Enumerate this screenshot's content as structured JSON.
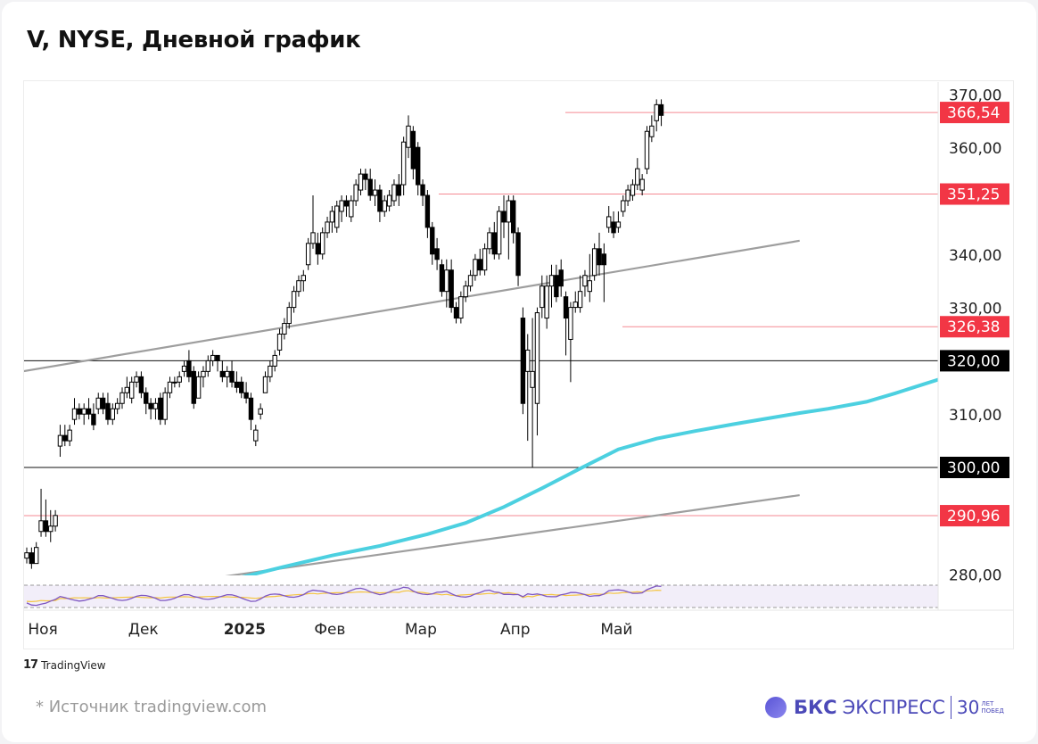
{
  "title": "V, NYSE, Дневной график",
  "source": "*  Источник tradingview.com",
  "tv_logo": "TradingView",
  "brand": {
    "name": "БКС",
    "name2": "ЭКСПРЕСС",
    "years": "30",
    "sub1": "ЛЕТ",
    "sub2": "ПОБЕД"
  },
  "chart_data": {
    "type": "candlestick",
    "title": "V, NYSE, Дневной график",
    "y_ticks": [
      "370,00",
      "360,00",
      "340,00",
      "330,00",
      "310,00",
      "280,00"
    ],
    "ylim": [
      278,
      372
    ],
    "x_ticks": [
      {
        "label": "Ноя",
        "index": 1
      },
      {
        "label": "Дек",
        "index": 22
      },
      {
        "label": "2025",
        "index": 42
      },
      {
        "label": "Фев",
        "index": 61
      },
      {
        "label": "Мар",
        "index": 80
      },
      {
        "label": "Апр",
        "index": 100
      },
      {
        "label": "Май",
        "index": 121
      }
    ],
    "price_levels": [
      {
        "value": 366.54,
        "label": "366,54",
        "color": "#f23645",
        "style": "red"
      },
      {
        "value": 351.25,
        "label": "351,25",
        "color": "#f23645",
        "style": "red"
      },
      {
        "value": 326.38,
        "label": "326,38",
        "color": "#f23645",
        "style": "red"
      },
      {
        "value": 320.0,
        "label": "320,00",
        "color": "#000000",
        "style": "black"
      },
      {
        "value": 300.0,
        "label": "300,00",
        "color": "#000000",
        "style": "black"
      },
      {
        "value": 290.96,
        "label": "290,96",
        "color": "#f23645",
        "style": "red"
      }
    ],
    "candles_ohlc": [
      [
        283,
        285,
        282,
        284
      ],
      [
        284,
        285,
        281,
        282
      ],
      [
        282,
        286,
        282,
        285
      ],
      [
        288,
        296,
        287,
        290
      ],
      [
        290,
        294,
        287,
        288
      ],
      [
        288,
        292,
        286,
        289
      ],
      [
        289,
        292,
        288,
        291
      ],
      [
        304,
        308,
        302,
        306
      ],
      [
        306,
        308,
        304,
        305
      ],
      [
        305,
        308,
        304,
        307
      ],
      [
        309,
        313,
        308,
        311
      ],
      [
        311,
        312,
        309,
        310
      ],
      [
        310,
        312,
        308,
        311
      ],
      [
        311,
        313,
        309,
        310
      ],
      [
        310,
        312,
        307,
        308
      ],
      [
        311,
        314,
        310,
        313
      ],
      [
        313,
        314,
        310,
        311
      ],
      [
        312,
        314,
        308,
        309
      ],
      [
        309,
        312,
        308,
        311
      ],
      [
        311,
        313,
        310,
        312
      ],
      [
        312,
        315,
        311,
        314
      ],
      [
        314,
        317,
        313,
        315
      ],
      [
        313,
        317,
        312,
        316
      ],
      [
        316,
        318,
        315,
        317
      ],
      [
        317,
        318,
        313,
        314
      ],
      [
        314,
        315,
        310,
        312
      ],
      [
        312,
        313,
        309,
        311
      ],
      [
        311,
        313,
        309,
        312
      ],
      [
        313,
        314,
        308,
        309
      ],
      [
        309,
        315,
        308,
        314
      ],
      [
        314,
        317,
        313,
        316
      ],
      [
        316,
        317,
        315,
        316
      ],
      [
        316,
        318,
        315,
        317
      ],
      [
        318,
        320,
        317,
        319
      ],
      [
        320,
        322,
        316,
        317
      ],
      [
        318,
        319,
        311,
        312
      ],
      [
        313,
        318,
        313,
        317
      ],
      [
        317,
        319,
        315,
        318
      ],
      [
        318,
        321,
        317,
        320
      ],
      [
        320,
        322,
        319,
        321
      ],
      [
        321,
        321,
        318,
        320
      ],
      [
        318,
        320,
        316,
        317
      ],
      [
        317,
        319,
        315,
        318
      ],
      [
        318,
        320,
        315,
        316
      ],
      [
        316,
        318,
        314,
        315
      ],
      [
        316,
        317,
        313,
        314
      ],
      [
        314,
        316,
        312,
        313
      ],
      [
        313,
        314,
        307,
        309
      ],
      [
        305,
        308,
        304,
        307
      ],
      [
        310,
        312,
        309,
        311
      ],
      [
        314,
        318,
        314,
        317
      ],
      [
        317,
        320,
        316,
        319
      ],
      [
        319,
        322,
        318,
        321
      ],
      [
        322,
        326,
        321,
        325
      ],
      [
        325,
        328,
        324,
        327
      ],
      [
        327,
        331,
        326,
        330
      ],
      [
        330,
        334,
        329,
        333
      ],
      [
        333,
        336,
        332,
        335
      ],
      [
        335,
        337,
        333,
        336
      ],
      [
        338,
        343,
        337,
        342
      ],
      [
        342,
        351,
        341,
        344
      ],
      [
        342,
        344,
        338,
        340
      ],
      [
        340,
        345,
        339,
        344
      ],
      [
        344,
        347,
        343,
        346
      ],
      [
        346,
        349,
        344,
        348
      ],
      [
        345,
        350,
        344,
        349
      ],
      [
        348,
        351,
        346,
        350
      ],
      [
        350,
        351,
        347,
        349
      ],
      [
        347,
        351,
        346,
        350
      ],
      [
        350,
        354,
        349,
        353
      ],
      [
        352,
        356,
        351,
        355
      ],
      [
        355,
        356,
        352,
        354
      ],
      [
        354,
        356,
        350,
        351
      ],
      [
        351,
        354,
        349,
        352
      ],
      [
        352,
        353,
        346,
        348
      ],
      [
        348,
        351,
        347,
        350
      ],
      [
        349,
        352,
        348,
        351
      ],
      [
        350,
        354,
        349,
        353
      ],
      [
        353,
        355,
        349,
        351
      ],
      [
        353,
        362,
        351,
        361
      ],
      [
        360,
        366,
        358,
        364
      ],
      [
        363,
        364,
        354,
        356
      ],
      [
        360,
        361,
        351,
        353
      ],
      [
        353,
        354,
        349,
        351
      ],
      [
        351,
        352,
        343,
        345
      ],
      [
        345,
        346,
        338,
        340
      ],
      [
        341,
        343,
        337,
        339
      ],
      [
        338,
        339,
        332,
        333
      ],
      [
        333,
        339,
        330,
        337
      ],
      [
        337,
        339,
        329,
        330
      ],
      [
        330,
        331,
        327,
        328
      ],
      [
        328,
        333,
        327,
        332
      ],
      [
        332,
        335,
        331,
        334
      ],
      [
        334,
        337,
        333,
        336
      ],
      [
        336,
        340,
        335,
        339
      ],
      [
        339,
        341,
        336,
        337
      ],
      [
        337,
        342,
        336,
        341
      ],
      [
        341,
        345,
        340,
        344
      ],
      [
        344,
        346,
        339,
        340
      ],
      [
        340,
        349,
        339,
        348
      ],
      [
        348,
        351,
        343,
        346
      ],
      [
        346,
        351,
        339,
        350
      ],
      [
        350,
        351,
        342,
        344
      ],
      [
        344,
        345,
        334,
        336
      ],
      [
        328,
        330,
        310,
        312
      ],
      [
        318,
        325,
        305,
        322
      ],
      [
        315,
        328,
        300,
        318
      ],
      [
        312,
        330,
        306,
        329
      ],
      [
        330,
        336,
        328,
        334
      ],
      [
        328,
        336,
        326,
        334
      ],
      [
        334,
        338,
        330,
        336
      ],
      [
        336,
        338,
        331,
        332
      ],
      [
        337,
        339,
        332,
        334
      ],
      [
        332,
        333,
        321,
        328
      ],
      [
        324,
        331,
        316,
        330
      ],
      [
        330,
        333,
        329,
        331
      ],
      [
        330,
        336,
        329,
        333
      ],
      [
        334,
        337,
        332,
        336
      ],
      [
        333,
        340,
        331,
        335
      ],
      [
        336,
        342,
        335,
        341
      ],
      [
        341,
        344,
        336,
        338
      ],
      [
        340,
        342,
        331,
        338
      ],
      [
        345,
        349,
        344,
        347
      ],
      [
        346,
        348,
        343,
        344
      ],
      [
        345,
        348,
        344,
        346
      ],
      [
        348,
        351,
        347,
        350
      ],
      [
        350,
        353,
        349,
        352
      ],
      [
        351,
        354,
        350,
        353
      ],
      [
        353,
        358,
        352,
        356
      ],
      [
        352,
        355,
        351,
        354
      ],
      [
        356,
        364,
        355,
        363
      ],
      [
        362,
        366,
        361,
        364
      ],
      [
        365,
        369,
        363,
        368
      ],
      [
        368,
        369,
        364,
        366
      ]
    ],
    "ma200": [
      [
        24,
        275.5
      ],
      [
        34,
        277.3
      ],
      [
        44,
        279.2
      ],
      [
        54,
        281.4
      ],
      [
        64,
        283.5
      ],
      [
        74,
        285.3
      ],
      [
        84,
        287.5
      ],
      [
        92,
        289.6
      ],
      [
        100,
        292.6
      ],
      [
        108,
        296.1
      ],
      [
        116,
        299.8
      ],
      [
        124,
        303.4
      ],
      [
        132,
        305.4
      ],
      [
        140,
        306.8
      ],
      [
        148,
        308.1
      ],
      [
        156,
        309.3
      ],
      [
        162,
        310.2
      ],
      [
        168,
        311.0
      ],
      [
        176,
        312.3
      ],
      [
        182,
        313.9
      ],
      [
        188,
        315.6
      ],
      [
        194,
        317.3
      ],
      [
        198,
        318.5
      ],
      [
        200,
        319.2
      ]
    ],
    "trendlines": [
      {
        "from": [
          -1,
          318.0
        ],
        "to": [
          162,
          342.5
        ],
        "color": "#9e9e9e"
      },
      {
        "from": [
          33,
          278.5
        ],
        "to": [
          162,
          294.8
        ],
        "color": "#9e9e9e"
      }
    ],
    "rsi_indicator": {
      "band_top": 0.85,
      "band_bottom": 0.15
    }
  },
  "colors": {
    "up": "#ffffff",
    "down": "#000000",
    "wick": "#000000",
    "ma": "#4cd0e0",
    "red_level": "#f23645",
    "trend": "#9e9e9e"
  }
}
